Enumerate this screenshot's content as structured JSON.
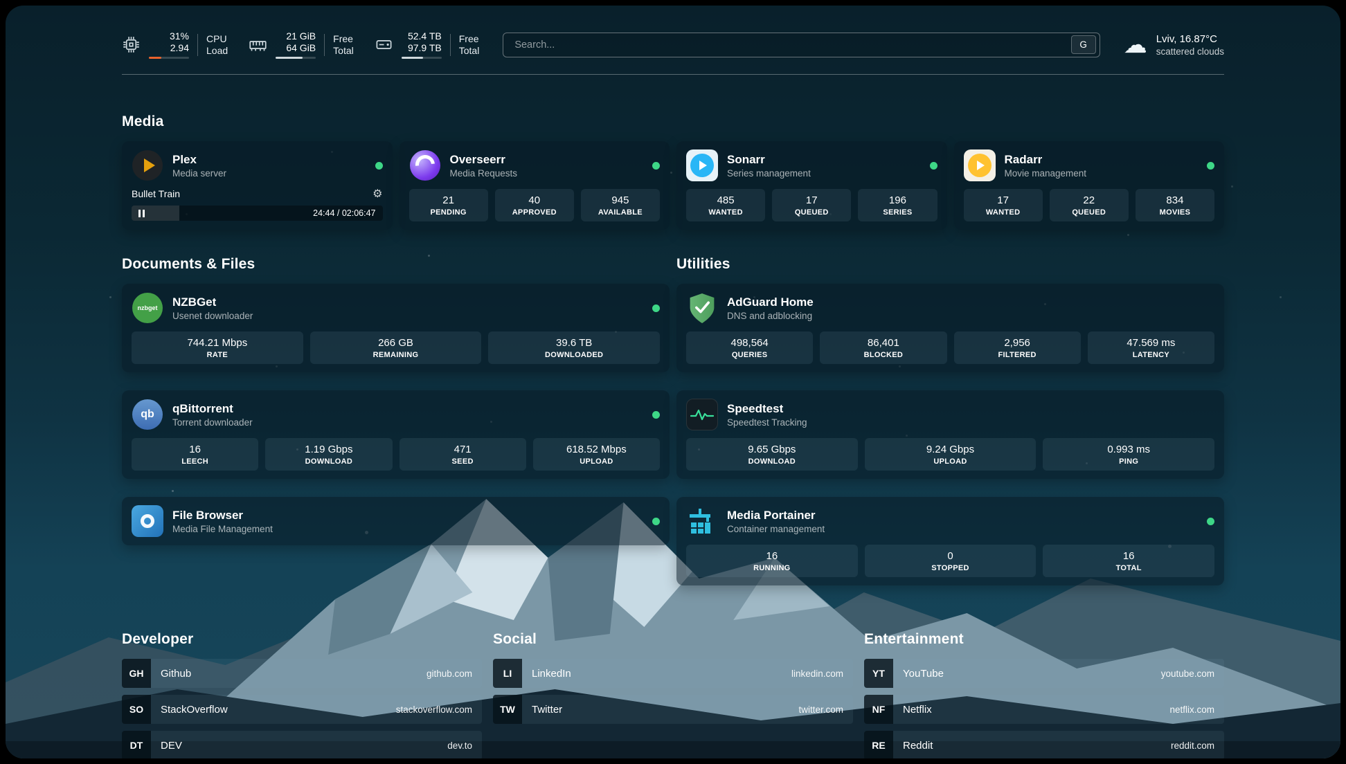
{
  "header": {
    "cpu": {
      "value_top": "31%",
      "value_bottom": "2.94",
      "label_top": "CPU",
      "label_bottom": "Load",
      "bar_percent": 31
    },
    "ram": {
      "value_top": "21 GiB",
      "value_bottom": "64 GiB",
      "label_top": "Free",
      "label_bottom": "Total",
      "bar_percent": 67
    },
    "disk": {
      "value_top": "52.4 TB",
      "value_bottom": "97.9 TB",
      "label_top": "Free",
      "label_bottom": "Total",
      "bar_percent": 54
    },
    "search": {
      "placeholder": "Search...",
      "button_label": "G"
    },
    "weather": {
      "location": "Lviv, 16.87°C",
      "condition": "scattered clouds"
    }
  },
  "section_titles": {
    "media": "Media",
    "documents": "Documents & Files",
    "utilities": "Utilities"
  },
  "apps": {
    "plex": {
      "title": "Plex",
      "subtitle": "Media server",
      "now_playing": "Bullet Train",
      "time": "24:44 / 02:06:47",
      "progress_percent": 19
    },
    "overseerr": {
      "title": "Overseerr",
      "subtitle": "Media Requests",
      "stats": [
        {
          "value": "21",
          "label": "PENDING"
        },
        {
          "value": "40",
          "label": "APPROVED"
        },
        {
          "value": "945",
          "label": "AVAILABLE"
        }
      ]
    },
    "sonarr": {
      "title": "Sonarr",
      "subtitle": "Series management",
      "stats": [
        {
          "value": "485",
          "label": "WANTED"
        },
        {
          "value": "17",
          "label": "QUEUED"
        },
        {
          "value": "196",
          "label": "SERIES"
        }
      ]
    },
    "radarr": {
      "title": "Radarr",
      "subtitle": "Movie management",
      "stats": [
        {
          "value": "17",
          "label": "WANTED"
        },
        {
          "value": "22",
          "label": "QUEUED"
        },
        {
          "value": "834",
          "label": "MOVIES"
        }
      ]
    },
    "nzbget": {
      "title": "NZBGet",
      "subtitle": "Usenet downloader",
      "icon_text": "nzbget",
      "stats": [
        {
          "value": "744.21 Mbps",
          "label": "RATE"
        },
        {
          "value": "266 GB",
          "label": "REMAINING"
        },
        {
          "value": "39.6 TB",
          "label": "DOWNLOADED"
        }
      ]
    },
    "qbittorrent": {
      "title": "qBittorrent",
      "subtitle": "Torrent downloader",
      "icon_text": "qb",
      "stats": [
        {
          "value": "16",
          "label": "LEECH"
        },
        {
          "value": "1.19 Gbps",
          "label": "DOWNLOAD"
        },
        {
          "value": "471",
          "label": "SEED"
        },
        {
          "value": "618.52 Mbps",
          "label": "UPLOAD"
        }
      ]
    },
    "filebrowser": {
      "title": "File Browser",
      "subtitle": "Media File Management"
    },
    "adguard": {
      "title": "AdGuard Home",
      "subtitle": "DNS and adblocking",
      "stats": [
        {
          "value": "498,564",
          "label": "QUERIES"
        },
        {
          "value": "86,401",
          "label": "BLOCKED"
        },
        {
          "value": "2,956",
          "label": "FILTERED"
        },
        {
          "value": "47.569 ms",
          "label": "LATENCY"
        }
      ]
    },
    "speedtest": {
      "title": "Speedtest",
      "subtitle": "Speedtest Tracking",
      "stats": [
        {
          "value": "9.65 Gbps",
          "label": "DOWNLOAD"
        },
        {
          "value": "9.24 Gbps",
          "label": "UPLOAD"
        },
        {
          "value": "0.993 ms",
          "label": "PING"
        }
      ]
    },
    "portainer": {
      "title": "Media Portainer",
      "subtitle": "Container management",
      "stats": [
        {
          "value": "16",
          "label": "RUNNING"
        },
        {
          "value": "0",
          "label": "STOPPED"
        },
        {
          "value": "16",
          "label": "TOTAL"
        }
      ]
    }
  },
  "bookmarks": {
    "developer": {
      "title": "Developer",
      "items": [
        {
          "abbr": "GH",
          "name": "Github",
          "url": "github.com"
        },
        {
          "abbr": "SO",
          "name": "StackOverflow",
          "url": "stackoverflow.com"
        },
        {
          "abbr": "DT",
          "name": "DEV",
          "url": "dev.to"
        }
      ]
    },
    "social": {
      "title": "Social",
      "items": [
        {
          "abbr": "LI",
          "name": "LinkedIn",
          "url": "linkedin.com"
        },
        {
          "abbr": "TW",
          "name": "Twitter",
          "url": "twitter.com"
        }
      ]
    },
    "entertainment": {
      "title": "Entertainment",
      "items": [
        {
          "abbr": "YT",
          "name": "YouTube",
          "url": "youtube.com"
        },
        {
          "abbr": "NF",
          "name": "Netflix",
          "url": "netflix.com"
        },
        {
          "abbr": "RE",
          "name": "Reddit",
          "url": "reddit.com"
        }
      ]
    }
  },
  "icons": {
    "cloud": "☁",
    "gear": "⚙"
  },
  "colors": {
    "status_online": "#3ed787",
    "cpu_bar": "#e8622c",
    "accent_plex": "#e5a00d"
  }
}
